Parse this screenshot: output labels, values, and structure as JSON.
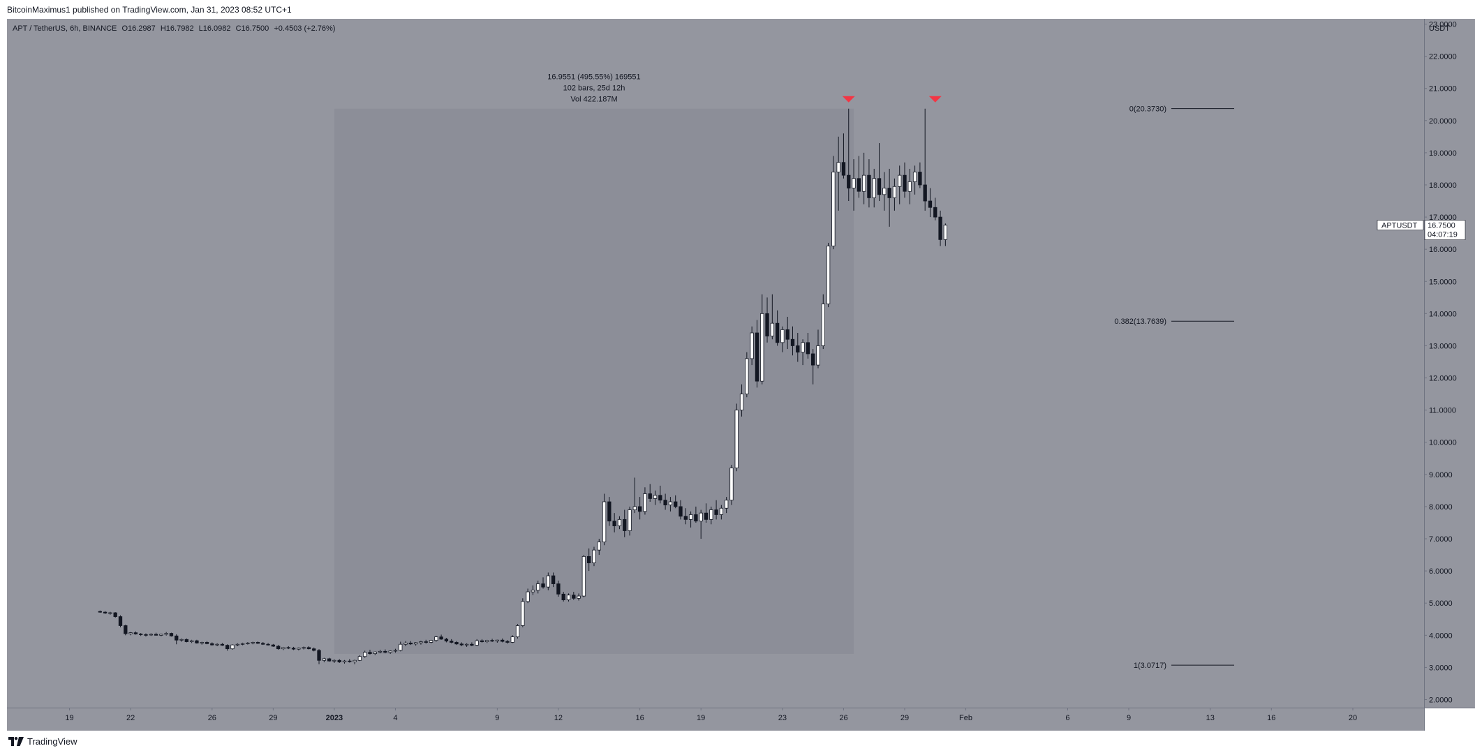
{
  "header": {
    "published_text": "BitcoinMaximus1 published on TradingView.com, Jan 31, 2023 08:52 UTC+1"
  },
  "footer": {
    "brand": "TradingView"
  },
  "symbol_bar": {
    "symbol_text": "APT / TetherUS, 6h, BINANCE",
    "open_label": "O",
    "open": "16.2987",
    "high_label": "H",
    "high": "16.7982",
    "low_label": "L",
    "low": "16.0982",
    "close_label": "C",
    "close": "16.7500",
    "change": "+0.4503 (+2.76%)"
  },
  "price_tag": {
    "symbol": "APTUSDT",
    "price": "16.7500",
    "countdown": "04:07:19"
  },
  "measure": {
    "line1": "16.9551 (495.55%) 169551",
    "line2": "102 bars, 25d 12h",
    "line3": "Vol 422.187M"
  },
  "colors": {
    "background": "#94969f",
    "measure_box": "#8c8e98",
    "bull_candle": "#ffffff",
    "bear_candle": "#131722",
    "marker": "#f23645",
    "text": "#131722"
  },
  "chart_data": {
    "type": "candlestick",
    "y_axis_label": "USDT",
    "ylim": [
      2.0,
      23.0
    ],
    "y_ticks": [
      "2.0000",
      "3.0000",
      "4.0000",
      "5.0000",
      "6.0000",
      "7.0000",
      "8.0000",
      "9.0000",
      "10.0000",
      "11.0000",
      "12.0000",
      "13.0000",
      "14.0000",
      "15.0000",
      "16.0000",
      "17.0000",
      "18.0000",
      "19.0000",
      "20.0000",
      "21.0000",
      "22.0000",
      "23.0000"
    ],
    "x_axis_dates": [
      "2022-12-16",
      "2023-02-20"
    ],
    "x_ticks": [
      {
        "date": "2022-12-19",
        "label": "19"
      },
      {
        "date": "2022-12-22",
        "label": "22"
      },
      {
        "date": "2022-12-26",
        "label": "26"
      },
      {
        "date": "2022-12-29",
        "label": "29"
      },
      {
        "date": "2023-01-01",
        "label": "2023"
      },
      {
        "date": "2023-01-04",
        "label": "4"
      },
      {
        "date": "2023-01-09",
        "label": "9"
      },
      {
        "date": "2023-01-12",
        "label": "12"
      },
      {
        "date": "2023-01-16",
        "label": "16"
      },
      {
        "date": "2023-01-19",
        "label": "19"
      },
      {
        "date": "2023-01-23",
        "label": "23"
      },
      {
        "date": "2023-01-26",
        "label": "26"
      },
      {
        "date": "2023-01-29",
        "label": "29"
      },
      {
        "date": "2023-02-01",
        "label": "Feb"
      },
      {
        "date": "2023-02-06",
        "label": "6"
      },
      {
        "date": "2023-02-09",
        "label": "9"
      },
      {
        "date": "2023-02-13",
        "label": "13"
      },
      {
        "date": "2023-02-16",
        "label": "16"
      },
      {
        "date": "2023-02-20",
        "label": "20"
      }
    ],
    "candles_ohlc": [
      [
        4.74,
        4.77,
        4.7,
        4.72
      ],
      [
        4.72,
        4.75,
        4.66,
        4.69
      ],
      [
        4.69,
        4.73,
        4.64,
        4.7
      ],
      [
        4.7,
        4.72,
        4.55,
        4.58
      ],
      [
        4.58,
        4.62,
        4.25,
        4.3
      ],
      [
        4.3,
        4.33,
        4.0,
        4.05
      ],
      [
        4.05,
        4.1,
        4.0,
        4.08
      ],
      [
        4.08,
        4.12,
        4.02,
        4.04
      ],
      [
        4.04,
        4.07,
        3.98,
        4.02
      ],
      [
        4.02,
        4.06,
        3.96,
        4.01
      ],
      [
        4.01,
        4.06,
        3.98,
        4.03
      ],
      [
        4.03,
        4.08,
        3.99,
        4.0
      ],
      [
        4.0,
        4.05,
        3.97,
        4.03
      ],
      [
        4.03,
        4.1,
        3.99,
        4.06
      ],
      [
        4.06,
        4.08,
        3.96,
        3.98
      ],
      [
        3.98,
        4.03,
        3.72,
        3.85
      ],
      [
        3.85,
        3.9,
        3.8,
        3.87
      ],
      [
        3.87,
        3.9,
        3.78,
        3.8
      ],
      [
        3.8,
        3.86,
        3.76,
        3.83
      ],
      [
        3.83,
        3.86,
        3.74,
        3.76
      ],
      [
        3.76,
        3.8,
        3.71,
        3.78
      ],
      [
        3.78,
        3.82,
        3.72,
        3.74
      ],
      [
        3.74,
        3.78,
        3.68,
        3.7
      ],
      [
        3.7,
        3.75,
        3.66,
        3.72
      ],
      [
        3.72,
        3.76,
        3.67,
        3.69
      ],
      [
        3.69,
        3.72,
        3.52,
        3.58
      ],
      [
        3.58,
        3.72,
        3.55,
        3.7
      ],
      [
        3.7,
        3.75,
        3.66,
        3.72
      ],
      [
        3.72,
        3.77,
        3.69,
        3.74
      ],
      [
        3.74,
        3.79,
        3.71,
        3.76
      ],
      [
        3.76,
        3.8,
        3.72,
        3.78
      ],
      [
        3.78,
        3.81,
        3.73,
        3.75
      ],
      [
        3.75,
        3.79,
        3.7,
        3.72
      ],
      [
        3.72,
        3.76,
        3.68,
        3.7
      ],
      [
        3.7,
        3.73,
        3.64,
        3.66
      ],
      [
        3.66,
        3.7,
        3.55,
        3.58
      ],
      [
        3.58,
        3.64,
        3.54,
        3.62
      ],
      [
        3.62,
        3.66,
        3.57,
        3.6
      ],
      [
        3.6,
        3.64,
        3.54,
        3.57
      ],
      [
        3.57,
        3.62,
        3.53,
        3.6
      ],
      [
        3.6,
        3.65,
        3.56,
        3.62
      ],
      [
        3.62,
        3.66,
        3.56,
        3.58
      ],
      [
        3.58,
        3.62,
        3.5,
        3.53
      ],
      [
        3.53,
        3.57,
        3.1,
        3.22
      ],
      [
        3.22,
        3.3,
        3.16,
        3.27
      ],
      [
        3.27,
        3.3,
        3.18,
        3.2
      ],
      [
        3.2,
        3.25,
        3.14,
        3.22
      ],
      [
        3.22,
        3.26,
        3.14,
        3.17
      ],
      [
        3.17,
        3.23,
        3.12,
        3.2
      ],
      [
        3.2,
        3.26,
        3.15,
        3.18
      ],
      [
        3.18,
        3.24,
        3.1,
        3.22
      ],
      [
        3.22,
        3.38,
        3.2,
        3.34
      ],
      [
        3.34,
        3.52,
        3.3,
        3.47
      ],
      [
        3.47,
        3.55,
        3.4,
        3.43
      ],
      [
        3.43,
        3.5,
        3.38,
        3.48
      ],
      [
        3.48,
        3.55,
        3.44,
        3.5
      ],
      [
        3.5,
        3.56,
        3.44,
        3.47
      ],
      [
        3.47,
        3.53,
        3.42,
        3.51
      ],
      [
        3.51,
        3.58,
        3.46,
        3.53
      ],
      [
        3.53,
        3.8,
        3.5,
        3.72
      ],
      [
        3.72,
        3.82,
        3.66,
        3.76
      ],
      [
        3.76,
        3.82,
        3.7,
        3.73
      ],
      [
        3.73,
        3.79,
        3.68,
        3.77
      ],
      [
        3.77,
        3.83,
        3.71,
        3.8
      ],
      [
        3.8,
        3.86,
        3.74,
        3.78
      ],
      [
        3.78,
        3.86,
        3.75,
        3.84
      ],
      [
        3.84,
        3.98,
        3.8,
        3.95
      ],
      [
        3.95,
        4.02,
        3.86,
        3.88
      ],
      [
        3.88,
        3.92,
        3.78,
        3.82
      ],
      [
        3.82,
        3.88,
        3.75,
        3.78
      ],
      [
        3.78,
        3.82,
        3.7,
        3.73
      ],
      [
        3.73,
        3.78,
        3.66,
        3.7
      ],
      [
        3.7,
        3.75,
        3.64,
        3.72
      ],
      [
        3.72,
        3.78,
        3.66,
        3.69
      ],
      [
        3.69,
        3.88,
        3.66,
        3.83
      ],
      [
        3.83,
        3.88,
        3.77,
        3.8
      ],
      [
        3.8,
        3.86,
        3.76,
        3.84
      ],
      [
        3.84,
        3.89,
        3.79,
        3.82
      ],
      [
        3.82,
        3.86,
        3.77,
        3.85
      ],
      [
        3.85,
        3.9,
        3.78,
        3.81
      ],
      [
        3.81,
        3.85,
        3.74,
        3.78
      ],
      [
        3.78,
        4.0,
        3.76,
        3.95
      ],
      [
        3.95,
        4.35,
        3.9,
        4.3
      ],
      [
        4.3,
        5.15,
        4.25,
        5.05
      ],
      [
        5.05,
        5.45,
        5.0,
        5.35
      ],
      [
        5.35,
        5.55,
        5.25,
        5.4
      ],
      [
        5.4,
        5.7,
        5.3,
        5.6
      ],
      [
        5.6,
        5.8,
        5.45,
        5.5
      ],
      [
        5.5,
        5.95,
        5.4,
        5.85
      ],
      [
        5.85,
        5.95,
        5.5,
        5.6
      ],
      [
        5.6,
        5.7,
        5.2,
        5.28
      ],
      [
        5.28,
        5.35,
        5.05,
        5.1
      ],
      [
        5.1,
        5.3,
        5.05,
        5.25
      ],
      [
        5.25,
        5.35,
        5.1,
        5.15
      ],
      [
        5.15,
        5.3,
        5.08,
        5.22
      ],
      [
        5.22,
        6.5,
        5.18,
        6.45
      ],
      [
        6.45,
        6.7,
        6.0,
        6.25
      ],
      [
        6.25,
        6.75,
        6.15,
        6.65
      ],
      [
        6.65,
        7.0,
        6.5,
        6.9
      ],
      [
        6.9,
        8.4,
        6.8,
        8.15
      ],
      [
        8.15,
        8.3,
        7.4,
        7.55
      ],
      [
        7.55,
        7.8,
        7.2,
        7.4
      ],
      [
        7.4,
        7.7,
        7.3,
        7.6
      ],
      [
        7.6,
        7.9,
        7.05,
        7.25
      ],
      [
        7.25,
        8.0,
        7.1,
        7.9
      ],
      [
        7.9,
        8.9,
        7.8,
        8.0
      ],
      [
        8.0,
        8.3,
        7.6,
        7.85
      ],
      [
        7.85,
        8.6,
        7.75,
        8.4
      ],
      [
        8.4,
        8.7,
        8.15,
        8.25
      ],
      [
        8.25,
        8.5,
        8.05,
        8.35
      ],
      [
        8.35,
        8.65,
        8.1,
        8.2
      ],
      [
        8.2,
        8.4,
        7.9,
        8.05
      ],
      [
        8.05,
        8.3,
        7.85,
        8.15
      ],
      [
        8.15,
        8.35,
        7.95,
        8.0
      ],
      [
        8.0,
        8.2,
        7.6,
        7.7
      ],
      [
        7.7,
        7.95,
        7.45,
        7.6
      ],
      [
        7.6,
        7.85,
        7.35,
        7.75
      ],
      [
        7.75,
        8.0,
        7.5,
        7.55
      ],
      [
        7.55,
        7.9,
        7.0,
        7.8
      ],
      [
        7.8,
        8.1,
        7.5,
        7.6
      ],
      [
        7.6,
        8.0,
        7.45,
        7.9
      ],
      [
        7.9,
        8.2,
        7.6,
        7.75
      ],
      [
        7.75,
        8.05,
        7.6,
        7.95
      ],
      [
        7.95,
        8.3,
        7.8,
        8.2
      ],
      [
        8.2,
        9.3,
        8.05,
        9.2
      ],
      [
        9.2,
        11.2,
        9.1,
        11.0
      ],
      [
        11.0,
        11.8,
        10.8,
        11.5
      ],
      [
        11.5,
        12.8,
        11.4,
        12.6
      ],
      [
        12.6,
        13.6,
        12.4,
        13.4
      ],
      [
        13.4,
        13.8,
        11.7,
        11.9
      ],
      [
        11.9,
        14.6,
        11.8,
        14.0
      ],
      [
        14.0,
        14.5,
        13.1,
        13.3
      ],
      [
        13.3,
        14.6,
        13.2,
        13.7
      ],
      [
        13.7,
        14.1,
        13.0,
        13.1
      ],
      [
        13.1,
        13.6,
        12.8,
        13.5
      ],
      [
        13.5,
        13.9,
        12.9,
        13.2
      ],
      [
        13.2,
        13.6,
        12.7,
        13.0
      ],
      [
        13.0,
        13.4,
        12.5,
        12.8
      ],
      [
        12.8,
        13.2,
        12.4,
        13.1
      ],
      [
        13.1,
        13.4,
        12.6,
        12.75
      ],
      [
        12.75,
        12.9,
        11.8,
        12.4
      ],
      [
        12.4,
        13.5,
        12.3,
        13.0
      ],
      [
        13.0,
        14.6,
        12.9,
        14.3
      ],
      [
        14.3,
        16.2,
        14.2,
        16.1
      ],
      [
        16.1,
        18.9,
        16.0,
        18.4
      ],
      [
        18.4,
        19.5,
        17.2,
        18.7
      ],
      [
        18.7,
        19.6,
        18.2,
        18.3
      ],
      [
        18.3,
        20.37,
        17.5,
        17.9
      ],
      [
        17.9,
        18.8,
        17.2,
        18.2
      ],
      [
        18.2,
        18.9,
        17.6,
        17.8
      ],
      [
        17.8,
        19.0,
        17.4,
        18.3
      ],
      [
        18.3,
        18.8,
        17.3,
        17.6
      ],
      [
        17.6,
        18.5,
        17.3,
        18.2
      ],
      [
        18.2,
        19.3,
        17.5,
        17.7
      ],
      [
        17.7,
        18.4,
        17.2,
        17.9
      ],
      [
        17.9,
        18.5,
        16.7,
        17.6
      ],
      [
        17.6,
        18.2,
        17.2,
        17.95
      ],
      [
        17.95,
        18.6,
        17.4,
        18.3
      ],
      [
        18.3,
        18.7,
        17.6,
        17.8
      ],
      [
        17.8,
        18.5,
        17.4,
        18.1
      ],
      [
        18.1,
        18.6,
        17.7,
        18.4
      ],
      [
        18.4,
        18.7,
        17.9,
        18.0
      ],
      [
        18.0,
        20.37,
        17.2,
        17.5
      ],
      [
        17.5,
        17.9,
        17.0,
        17.3
      ],
      [
        17.3,
        17.6,
        16.9,
        17.0
      ],
      [
        17.0,
        17.2,
        16.1,
        16.3
      ],
      [
        16.3,
        16.8,
        16.1,
        16.75
      ]
    ],
    "markers": [
      {
        "type": "down-arrow",
        "date": "2023-01-26T06:00",
        "value": 20.37
      },
      {
        "type": "down-arrow",
        "date": "2023-01-30T12:00",
        "value": 20.37
      }
    ],
    "fib_levels": [
      {
        "label": "0(20.3730)",
        "value": 20.373
      },
      {
        "label": "0.382(13.7639)",
        "value": 13.7639
      },
      {
        "label": "1(3.0717)",
        "value": 3.0717
      }
    ],
    "date_range_box": {
      "from": "2023-01-01T00:00",
      "to": "2023-01-26T12:00",
      "low": 3.42,
      "high": 20.37
    },
    "last_price": 16.75
  }
}
